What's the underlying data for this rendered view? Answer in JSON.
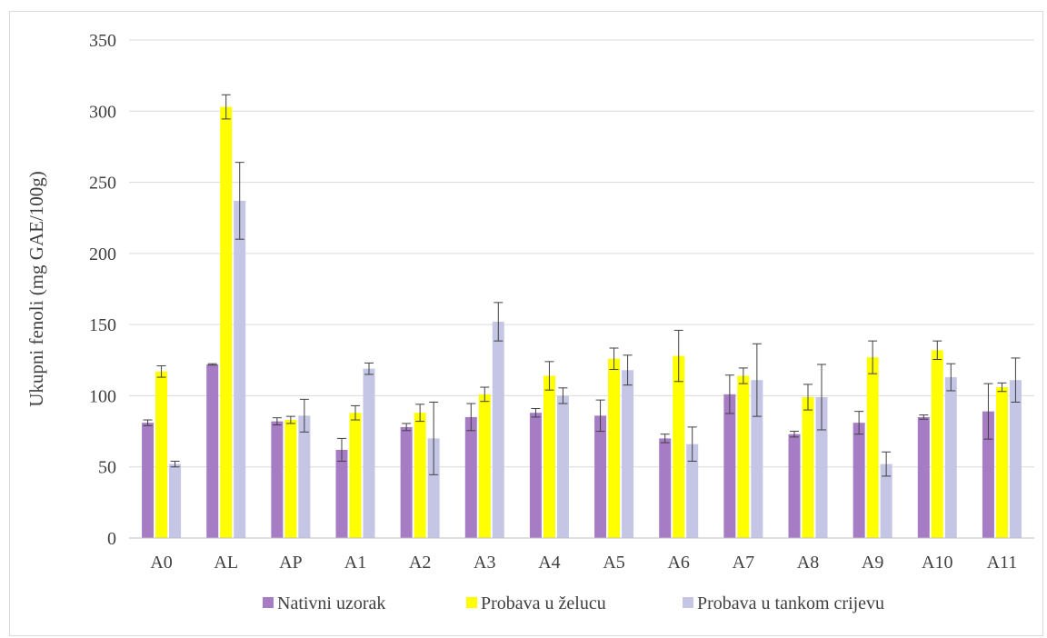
{
  "chart_data": {
    "type": "bar",
    "title": "",
    "xlabel": "",
    "ylabel": "Ukupni fenoli (mg GAE/100g)",
    "ylim": [
      0,
      350
    ],
    "yticks": [
      0,
      50,
      100,
      150,
      200,
      250,
      300,
      350
    ],
    "grid": true,
    "legend_position": "bottom",
    "categories": [
      "A0",
      "AL",
      "AP",
      "A1",
      "A2",
      "A3",
      "A4",
      "A5",
      "A6",
      "A7",
      "A8",
      "A9",
      "A10",
      "A11"
    ],
    "series": [
      {
        "name": "Nativni uzorak",
        "color": "#a67dc5",
        "values": [
          81,
          122,
          82,
          62,
          78,
          85,
          88,
          86,
          70,
          101,
          73,
          81,
          85,
          89
        ],
        "errors": [
          2,
          0.5,
          2.5,
          8,
          2.5,
          9.5,
          3,
          11,
          3,
          13.5,
          2,
          8,
          1.5,
          19.5
        ]
      },
      {
        "name": "Probava u želucu",
        "color": "#ffff00",
        "values": [
          117,
          303,
          83,
          88,
          88,
          101,
          114,
          126,
          128,
          114,
          99,
          127,
          132,
          106
        ],
        "errors": [
          4,
          8.5,
          2.5,
          5,
          6,
          5,
          10,
          7.5,
          18,
          5.5,
          9,
          11.5,
          6.5,
          3
        ]
      },
      {
        "name": "Probava u tankom crijevu",
        "color": "#c5c5e6",
        "values": [
          52,
          237,
          86,
          119,
          70,
          152,
          100,
          118,
          66,
          111,
          99,
          52,
          113,
          111
        ],
        "errors": [
          2,
          27,
          11.5,
          4,
          25.5,
          13.5,
          5.5,
          10.5,
          12,
          25.5,
          23,
          8.5,
          9.5,
          15.5
        ]
      }
    ]
  }
}
